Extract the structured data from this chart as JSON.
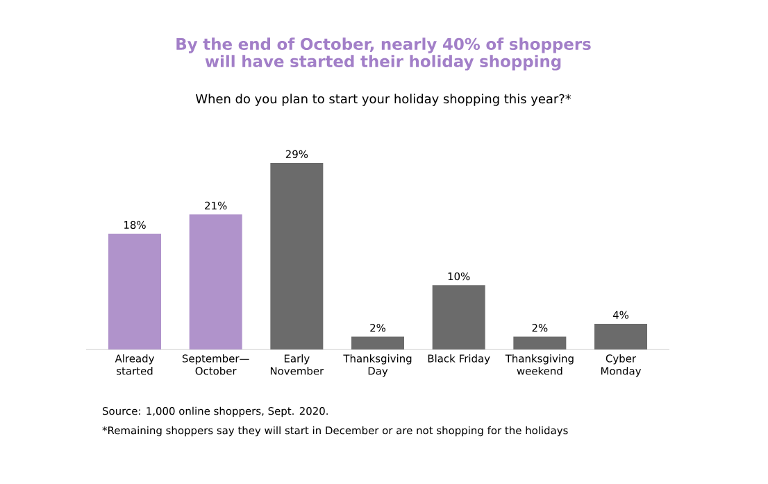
{
  "chart_data": {
    "type": "bar",
    "title": "By the end of October, nearly 40% of shoppers will have started their holiday shopping",
    "subtitle": "When do you plan to start your holiday shopping this year?*",
    "categories": [
      "Already started",
      "September— October",
      "Early November",
      "Thanksgiving Day",
      "Black Friday",
      "Thanksgiving weekend",
      "Cyber Monday"
    ],
    "values": [
      18,
      21,
      29,
      2,
      10,
      2,
      4
    ],
    "value_labels": [
      "18%",
      "21%",
      "29%",
      "2%",
      "10%",
      "2%",
      "4%"
    ],
    "colors": [
      "#b093cb",
      "#b093cb",
      "#6b6b6b",
      "#6b6b6b",
      "#6b6b6b",
      "#6b6b6b",
      "#6b6b6b"
    ],
    "data_labels": true,
    "annotations": [
      "Source: 1,000 online shoppers, Sept. 2020.",
      "*Remaining shoppers say they will start in December or are not shopping for the holidays"
    ]
  }
}
